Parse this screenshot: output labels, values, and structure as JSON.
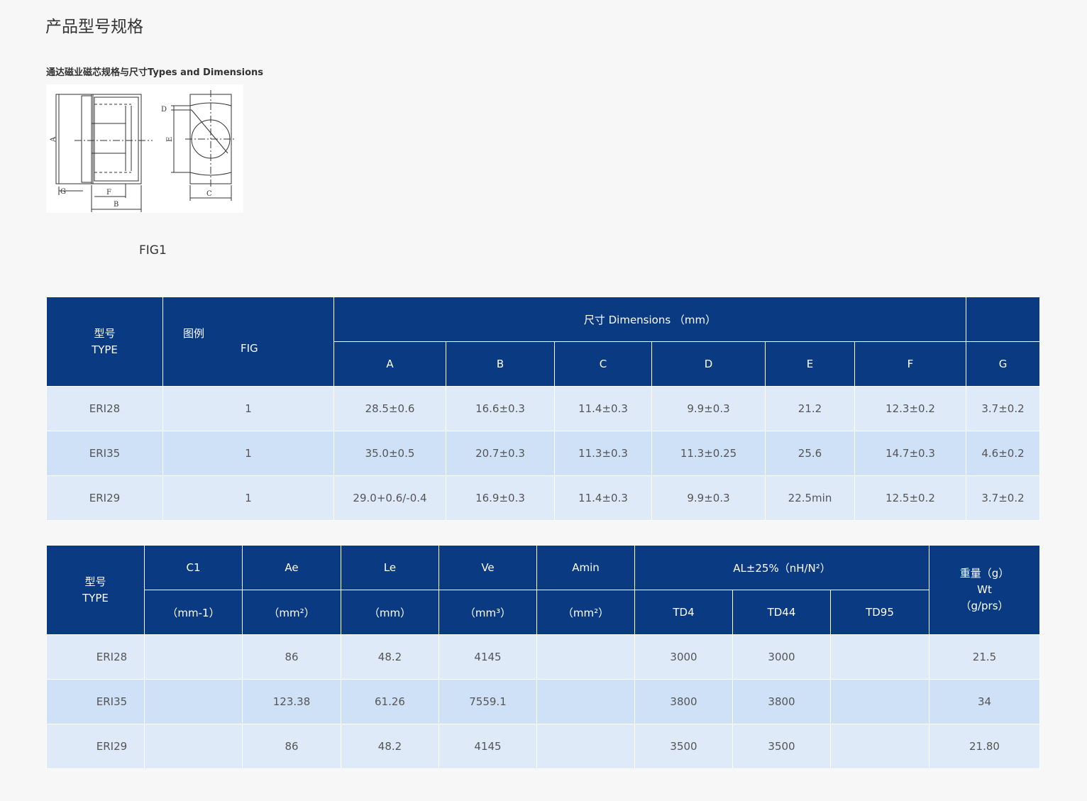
{
  "page_title": "产品型号规格",
  "subtitle": "通达磁业磁芯规格与尺寸Types and Dimensions",
  "figure": {
    "caption": "FIG1",
    "labels": {
      "a": "A",
      "b": "B",
      "c": "C",
      "d": "D",
      "e": "E",
      "f": "F",
      "g": "G"
    }
  },
  "table1": {
    "header": {
      "type_cn": "型号",
      "type_en": "TYPE",
      "fig_cn": "图例",
      "fig_en": "FIG",
      "dimensions": "尺寸  Dimensions （mm）",
      "cols": [
        "A",
        "B",
        "C",
        "D",
        "E",
        "F",
        "G"
      ]
    },
    "rows": [
      {
        "type": "ERI28",
        "fig": "1",
        "a": "28.5±0.6",
        "b": "16.6±0.3",
        "c": "11.4±0.3",
        "d": "9.9±0.3",
        "e": "21.2",
        "f": "12.3±0.2",
        "g": "3.7±0.2"
      },
      {
        "type": "ERI35",
        "fig": "1",
        "a": "35.0±0.5",
        "b": "20.7±0.3",
        "c": "11.3±0.3",
        "d": "11.3±0.25",
        "e": "25.6",
        "f": "14.7±0.3",
        "g": "4.6±0.2"
      },
      {
        "type": "ERI29",
        "fig": "1",
        "a": "29.0+0.6/-0.4",
        "b": "16.9±0.3",
        "c": "11.4±0.3",
        "d": "9.9±0.3",
        "e": "22.5min",
        "f": "12.5±0.2",
        "g": "3.7±0.2"
      }
    ]
  },
  "table2": {
    "header": {
      "type_cn": "型号",
      "type_en": "TYPE",
      "c1": "C1",
      "c1_unit": "（mm-1）",
      "ae": "Ae",
      "ae_unit": "（mm²）",
      "le": "Le",
      "le_unit": "（mm）",
      "ve": "Ve",
      "ve_unit": "（mm³）",
      "amin": "Amin",
      "amin_unit": "（mm²）",
      "al": "AL±25%（nH/N²）",
      "td4": "TD4",
      "td44": "TD44",
      "td95": "TD95",
      "wt_cn": "重量（g）",
      "wt_en": "Wt",
      "wt_unit": "（g/prs）"
    },
    "rows": [
      {
        "type": "ERI28",
        "c1": "",
        "ae": "86",
        "le": "48.2",
        "ve": "4145",
        "amin": "",
        "td4": "3000",
        "td44": "3000",
        "td95": "",
        "wt": "21.5"
      },
      {
        "type": "ERI35",
        "c1": "",
        "ae": "123.38",
        "le": "61.26",
        "ve": "7559.1",
        "amin": "",
        "td4": "3800",
        "td44": "3800",
        "td95": "",
        "wt": "34"
      },
      {
        "type": "ERI29",
        "c1": "",
        "ae": "86",
        "le": "48.2",
        "ve": "4145",
        "amin": "",
        "td4": "3500",
        "td44": "3500",
        "td95": "",
        "wt": "21.80"
      }
    ]
  }
}
